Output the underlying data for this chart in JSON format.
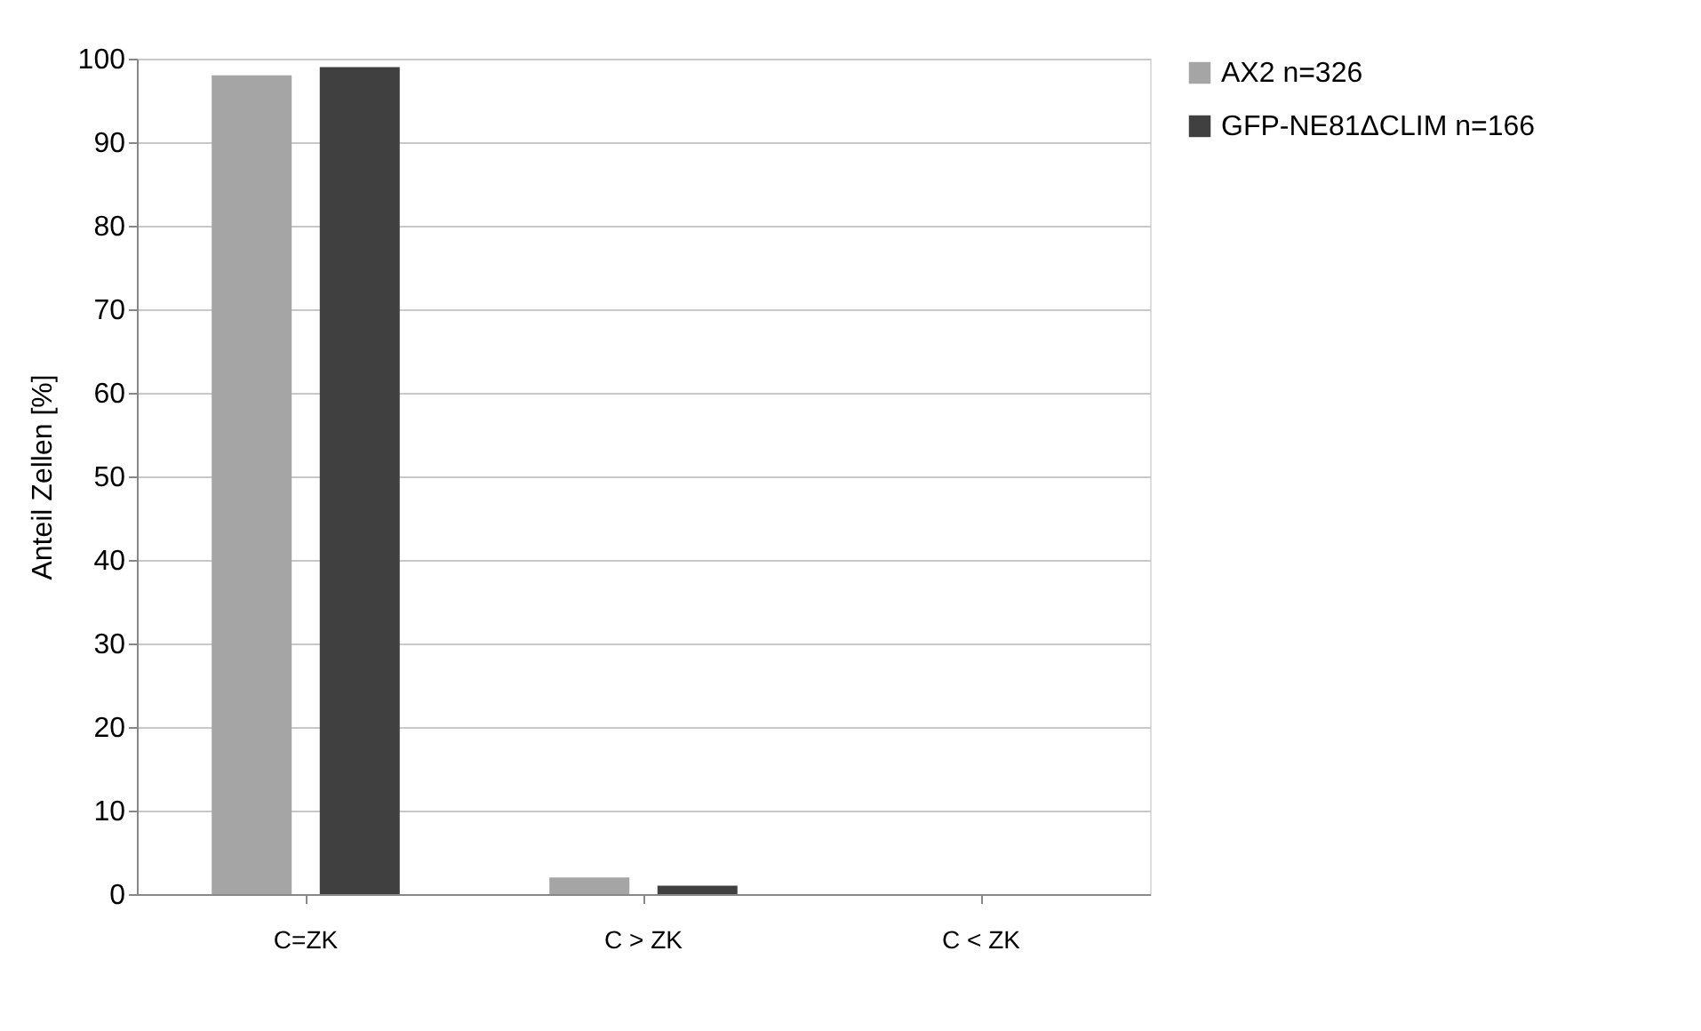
{
  "chart_data": {
    "type": "bar",
    "ylabel": "Anteil  Zellen [%]",
    "categories": [
      "C=ZK",
      "C > ZK",
      "C < ZK"
    ],
    "series": [
      {
        "name": "AX2  n=326",
        "color": "#a5a5a5",
        "values": [
          98,
          2,
          0
        ]
      },
      {
        "name": "GFP-NE81ΔCLIM  n=166",
        "color": "#404040",
        "values": [
          99,
          1,
          0
        ]
      }
    ],
    "ylim": [
      0,
      100
    ],
    "yticks": [
      0,
      10,
      20,
      30,
      40,
      50,
      60,
      70,
      80,
      90,
      100
    ],
    "grid": "y",
    "legend": "right"
  }
}
